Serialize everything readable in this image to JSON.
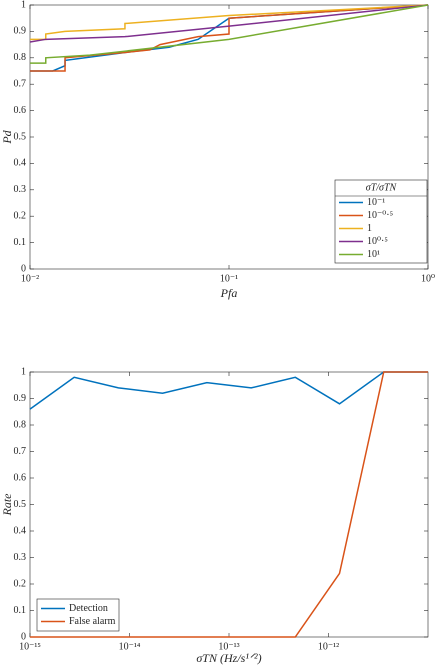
{
  "chart_data": [
    {
      "type": "line",
      "xscale": "log",
      "xlabel": "Pfa",
      "ylabel": "Pd",
      "xlim": [
        0.01,
        1
      ],
      "ylim": [
        0,
        1
      ],
      "xticks": [
        {
          "value": 0.01,
          "label": "10⁻²"
        },
        {
          "value": 0.1,
          "label": "10⁻¹"
        },
        {
          "value": 1,
          "label": "10⁰"
        }
      ],
      "yticks": [
        0,
        0.1,
        0.2,
        0.3,
        0.4,
        0.5,
        0.6,
        0.7,
        0.8,
        0.9,
        1
      ],
      "grid": false,
      "legend": "lower right",
      "legend_title": "σT/σTN",
      "series": [
        {
          "name": "10⁻¹",
          "color": "#0072BD",
          "x": [
            0.01,
            0.013,
            0.015,
            0.015,
            0.03,
            0.05,
            0.07,
            0.1,
            1
          ],
          "values": [
            0.75,
            0.75,
            0.77,
            0.79,
            0.82,
            0.84,
            0.87,
            0.95,
            1
          ]
        },
        {
          "name": "10⁻⁰·⁵",
          "color": "#D95319",
          "x": [
            0.01,
            0.015,
            0.015,
            0.03,
            0.04,
            0.045,
            0.07,
            0.1,
            0.1,
            1
          ],
          "values": [
            0.75,
            0.75,
            0.8,
            0.82,
            0.83,
            0.85,
            0.88,
            0.89,
            0.95,
            1
          ]
        },
        {
          "name": "1",
          "color": "#EDB120",
          "x": [
            0.01,
            0.012,
            0.012,
            0.015,
            0.03,
            0.03,
            0.1,
            1
          ],
          "values": [
            0.87,
            0.87,
            0.89,
            0.9,
            0.91,
            0.93,
            0.96,
            1
          ]
        },
        {
          "name": "10⁰·⁵",
          "color": "#7E2F8E",
          "x": [
            0.01,
            0.012,
            0.03,
            0.1,
            1
          ],
          "values": [
            0.86,
            0.87,
            0.88,
            0.92,
            1
          ]
        },
        {
          "name": "10¹",
          "color": "#77AC30",
          "x": [
            0.01,
            0.012,
            0.012,
            0.02,
            0.1,
            1
          ],
          "values": [
            0.78,
            0.78,
            0.8,
            0.81,
            0.87,
            1
          ]
        }
      ]
    },
    {
      "type": "line",
      "xscale": "log",
      "xlabel": "σTN (Hz/s¹ᐟ²)",
      "ylabel": "Rate",
      "xlim": [
        1e-15,
        1e-11
      ],
      "ylim": [
        0,
        1
      ],
      "xticks": [
        {
          "value": 1e-15,
          "label": "10⁻¹⁵"
        },
        {
          "value": 1e-14,
          "label": "10⁻¹⁴"
        },
        {
          "value": 1e-13,
          "label": "10⁻¹³"
        },
        {
          "value": 1e-12,
          "label": "10⁻¹²"
        }
      ],
      "yticks": [
        0,
        0.1,
        0.2,
        0.3,
        0.4,
        0.5,
        0.6,
        0.7,
        0.8,
        0.9,
        1
      ],
      "grid": false,
      "legend": "lower left",
      "series": [
        {
          "name": "Detection",
          "color": "#0072BD",
          "x": [
            1e-15,
            2.78e-15,
            7.74e-15,
            2.15e-14,
            5.99e-14,
            1.67e-13,
            4.64e-13,
            1.29e-12,
            3.59e-12,
            1e-11
          ],
          "values": [
            0.86,
            0.98,
            0.94,
            0.92,
            0.96,
            0.94,
            0.98,
            0.88,
            1,
            1
          ]
        },
        {
          "name": "False alarm",
          "color": "#D95319",
          "x": [
            1e-15,
            2.78e-15,
            7.74e-15,
            2.15e-14,
            5.99e-14,
            1.67e-13,
            4.64e-13,
            1.29e-12,
            3.59e-12,
            1e-11
          ],
          "values": [
            0,
            0,
            0,
            0,
            0,
            0,
            0,
            0.24,
            1,
            1
          ]
        }
      ]
    }
  ]
}
